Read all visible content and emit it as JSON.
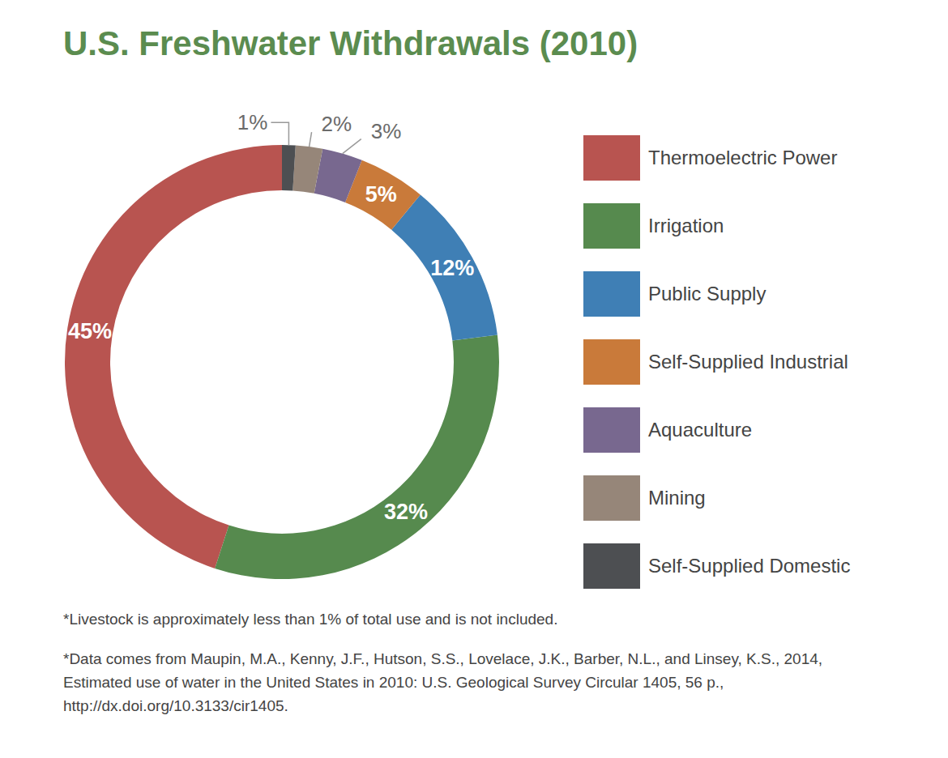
{
  "chart_data": {
    "type": "pie",
    "title": "U.S. Freshwater Withdrawals (2010)",
    "categories": [
      "Thermoelectric Power",
      "Irrigation",
      "Public Supply",
      "Self-Supplied Industrial",
      "Aquaculture",
      "Mining",
      "Self-Supplied Domestic"
    ],
    "values": [
      45,
      32,
      12,
      5,
      3,
      2,
      1
    ],
    "value_labels": [
      "45%",
      "32%",
      "12%",
      "5%",
      "3%",
      "2%",
      "1%"
    ],
    "colors": [
      "#b85450",
      "#568a4e",
      "#3f7fb5",
      "#c97a3a",
      "#78688f",
      "#968679",
      "#4d4f52"
    ],
    "data_labels": true,
    "legend": "right",
    "annotations": [
      "*Livestock is approximately less than 1% of total use and is not included.",
      "*Data comes from Maupin, M.A., Kenny, J.F., Hutson, S.S., Lovelace, J.K., Barber, N.L., and Linsey, K.S., 2014, Estimated use of water in the United States in 2010: U.S. Geological Survey Circular 1405, 56 p., http://dx.doi.org/10.3133/cir1405."
    ]
  }
}
